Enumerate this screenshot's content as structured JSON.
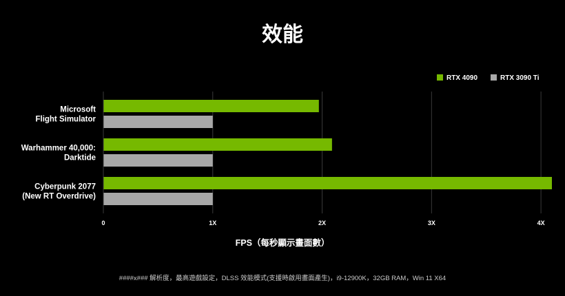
{
  "chart_data": {
    "type": "bar",
    "orientation": "horizontal",
    "title": "效能",
    "xlabel": "FPS（每秒顯示畫面數）",
    "ylabel": "",
    "xlim": [
      0,
      4.1
    ],
    "xticks": [
      {
        "value": 0,
        "label": "0"
      },
      {
        "value": 1,
        "label": "1X"
      },
      {
        "value": 2,
        "label": "2X"
      },
      {
        "value": 3,
        "label": "3X"
      },
      {
        "value": 4,
        "label": "4X"
      }
    ],
    "grid": true,
    "legend_position": "top-right",
    "categories": [
      [
        "Microsoft",
        "Flight Simulator"
      ],
      [
        "Warhammer 40,000:",
        "Darktide"
      ],
      [
        "Cyberpunk 2077",
        "(New RT Overdrive)"
      ]
    ],
    "series": [
      {
        "name": "RTX 4090",
        "color": "#76b900",
        "values": [
          1.97,
          2.09,
          4.1
        ]
      },
      {
        "name": "RTX 3090 Ti",
        "color": "#a8a8a8",
        "values": [
          1.0,
          1.0,
          1.0
        ]
      }
    ],
    "footnote": "####x### 解析度，最高遊戲設定，DLSS 效能模式(支援時啟用畫面產生)，i9-12900K，32GB RAM，Win 11 X64"
  }
}
